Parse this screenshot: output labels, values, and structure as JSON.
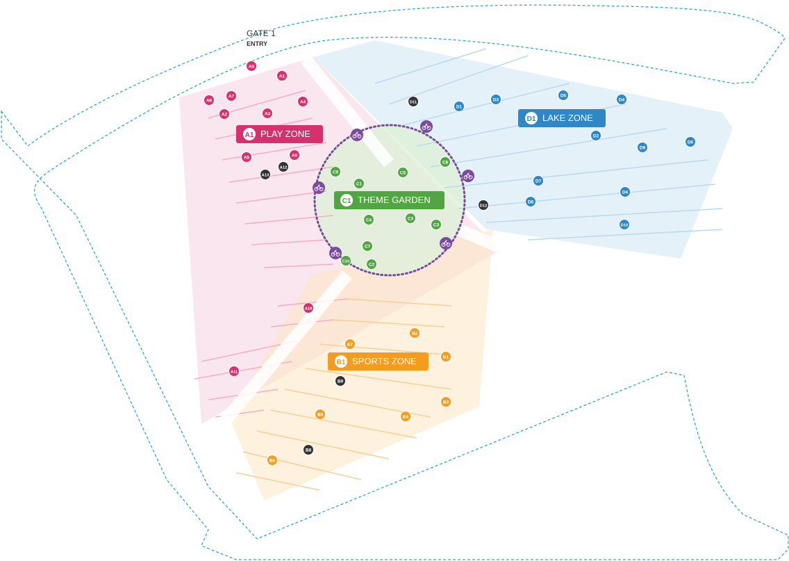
{
  "gate": {
    "title": "GATE 1",
    "subtitle": "ENTRY"
  },
  "colors": {
    "play": "#d6316e",
    "sports": "#f29d20",
    "theme": "#52a543",
    "lake": "#2f87c6",
    "service": "#333333",
    "route": "#7a4a9e",
    "path": "#2aa7d6"
  },
  "zones": [
    {
      "id": "play",
      "code": "A1",
      "name": "PLAY ZONE"
    },
    {
      "id": "theme",
      "code": "C1",
      "name": "THEME GARDEN"
    },
    {
      "id": "lake",
      "code": "D1",
      "name": "LAKE ZONE"
    },
    {
      "id": "sports",
      "code": "B1",
      "name": "SPORTS ZONE"
    }
  ],
  "markers": {
    "play": [
      "A8",
      "A1",
      "A7",
      "A6",
      "A4",
      "A2",
      "A3",
      "A5",
      "A9",
      "A10",
      "A11"
    ],
    "service": [
      "D11",
      "A13",
      "A12",
      "D12",
      "B9",
      "B8"
    ],
    "theme": [
      "C9",
      "C5",
      "C8",
      "C1",
      "C4",
      "C3",
      "C3",
      "C7",
      "C10",
      "C2"
    ],
    "lake": [
      "D3",
      "D5",
      "D4",
      "D1",
      "D2",
      "D9",
      "D6",
      "D7",
      "D4",
      "D8",
      "D10"
    ],
    "sports": [
      "B7",
      "B2",
      "B1",
      "B3",
      "B5",
      "B4",
      "B6"
    ]
  },
  "route_icons": [
    "bike-icon",
    "bike-icon",
    "bike-icon",
    "bike-icon",
    "bike-icon",
    "bike-icon"
  ]
}
